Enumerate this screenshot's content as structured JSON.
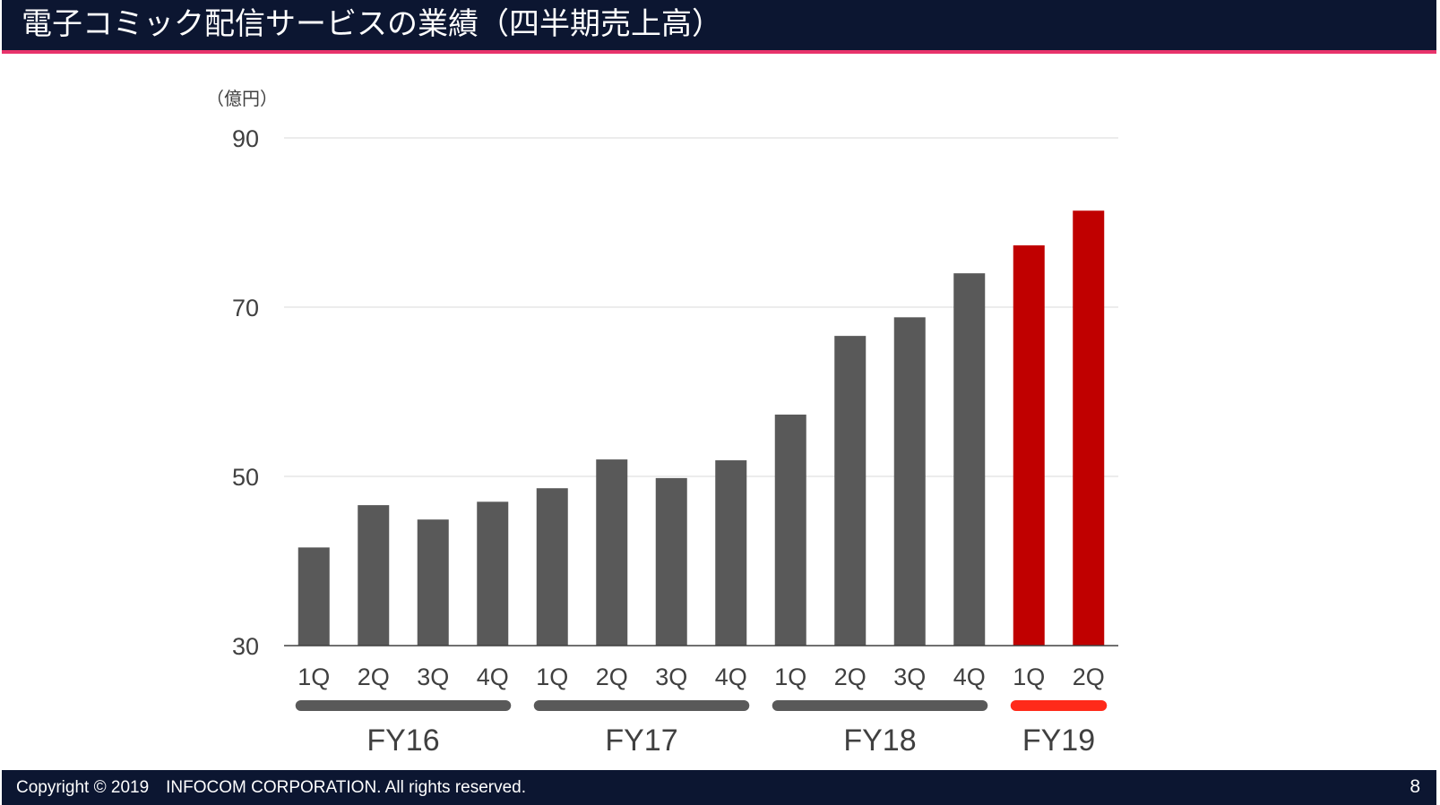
{
  "header": {
    "title": "電子コミック配信サービスの業績（四半期売上高）"
  },
  "footer": {
    "copyright": "Copyright © 2019　INFOCOM CORPORATION. All rights reserved.",
    "page_number": "8"
  },
  "chart_data": {
    "type": "bar",
    "ylabel": "（億円）",
    "ylim": [
      30,
      90
    ],
    "yticks": [
      "90",
      "70",
      "50",
      "30"
    ],
    "grid": true,
    "categories": [
      "1Q",
      "2Q",
      "3Q",
      "4Q",
      "1Q",
      "2Q",
      "3Q",
      "4Q",
      "1Q",
      "2Q",
      "3Q",
      "4Q",
      "1Q",
      "2Q"
    ],
    "values": [
      41.6,
      46.6,
      44.9,
      47.0,
      48.6,
      52.0,
      49.8,
      51.9,
      57.3,
      66.6,
      68.8,
      74.0,
      77.3,
      81.4
    ],
    "fiscal_years": [
      {
        "label": "FY16",
        "start": 0,
        "end": 3,
        "highlight": false
      },
      {
        "label": "FY17",
        "start": 4,
        "end": 7,
        "highlight": false
      },
      {
        "label": "FY18",
        "start": 8,
        "end": 11,
        "highlight": false
      },
      {
        "label": "FY19",
        "start": 12,
        "end": 13,
        "highlight": true
      }
    ],
    "colors": {
      "bar": "#595959",
      "bar_highlight": "#c00000",
      "fy_bracket": "#595959",
      "fy_bracket_highlight": "#ff2a1a",
      "gridline": "#d9d9d9",
      "axis": "#404040",
      "text": "#404040"
    },
    "highlight_from_index": 12
  }
}
